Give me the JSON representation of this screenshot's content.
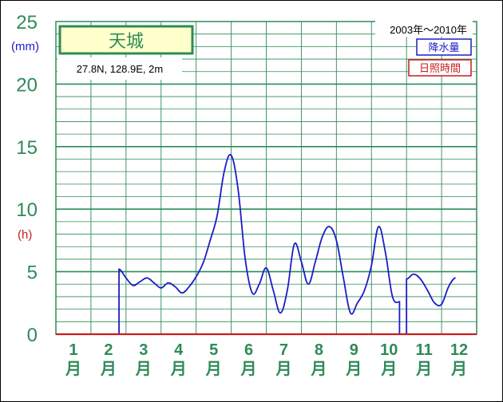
{
  "chart_data": {
    "type": "line",
    "station_name": "天城",
    "location": "27.8N,  128.9E,  2m",
    "period": "2003年〜2010年",
    "legend": [
      {
        "name": "降水量",
        "color": "#1c1cc8"
      },
      {
        "name": "日照時間",
        "color": "#c81c1c"
      }
    ],
    "y_unit_left": "(mm)",
    "y_unit_right": "(h)",
    "y_ticks": [
      "0",
      "5",
      "10",
      "15",
      "20",
      "25"
    ],
    "ylim": [
      0,
      25
    ],
    "xlim": [
      0.5,
      12.5
    ],
    "x_ticks": [
      {
        "num": "1",
        "unit": "月"
      },
      {
        "num": "2",
        "unit": "月"
      },
      {
        "num": "3",
        "unit": "月"
      },
      {
        "num": "4",
        "unit": "月"
      },
      {
        "num": "5",
        "unit": "月"
      },
      {
        "num": "6",
        "unit": "月"
      },
      {
        "num": "7",
        "unit": "月"
      },
      {
        "num": "8",
        "unit": "月"
      },
      {
        "num": "9",
        "unit": "月"
      },
      {
        "num": "10",
        "unit": "月"
      },
      {
        "num": "11",
        "unit": "月"
      },
      {
        "num": "12",
        "unit": "月"
      }
    ],
    "grid": true,
    "series": [
      {
        "name": "降水量",
        "color": "#1c1cc8",
        "segments": [
          [
            [
              2.3,
              0
            ],
            [
              2.3,
              5.2
            ],
            [
              2.5,
              4.5
            ],
            [
              2.7,
              3.9
            ],
            [
              2.9,
              4.2
            ],
            [
              3.1,
              4.5
            ],
            [
              3.3,
              4.1
            ],
            [
              3.5,
              3.7
            ],
            [
              3.7,
              4.1
            ],
            [
              3.9,
              3.8
            ],
            [
              4.1,
              3.3
            ],
            [
              4.3,
              3.8
            ],
            [
              4.5,
              4.6
            ],
            [
              4.7,
              5.7
            ],
            [
              4.9,
              7.5
            ],
            [
              5.1,
              9.5
            ],
            [
              5.3,
              13.0
            ],
            [
              5.5,
              14.3
            ],
            [
              5.7,
              11.5
            ],
            [
              5.9,
              6.0
            ],
            [
              6.1,
              3.3
            ],
            [
              6.3,
              4.0
            ],
            [
              6.5,
              5.3
            ],
            [
              6.7,
              3.5
            ],
            [
              6.9,
              1.7
            ],
            [
              7.1,
              3.5
            ],
            [
              7.3,
              7.2
            ],
            [
              7.5,
              5.8
            ],
            [
              7.7,
              4.0
            ],
            [
              7.9,
              5.8
            ],
            [
              8.1,
              7.8
            ],
            [
              8.3,
              8.6
            ],
            [
              8.5,
              7.5
            ],
            [
              8.7,
              4.5
            ],
            [
              8.9,
              1.7
            ],
            [
              9.1,
              2.5
            ],
            [
              9.3,
              3.5
            ],
            [
              9.5,
              5.5
            ],
            [
              9.7,
              8.6
            ],
            [
              9.9,
              6.5
            ],
            [
              10.1,
              3.0
            ],
            [
              10.3,
              2.6
            ],
            [
              10.3,
              0
            ]
          ],
          [
            [
              10.5,
              0
            ],
            [
              10.5,
              4.4
            ],
            [
              10.7,
              4.8
            ],
            [
              10.9,
              4.4
            ],
            [
              11.1,
              3.5
            ],
            [
              11.3,
              2.5
            ],
            [
              11.5,
              2.4
            ],
            [
              11.7,
              3.8
            ],
            [
              11.9,
              4.5
            ]
          ]
        ]
      },
      {
        "name": "日照時間",
        "color": "#c81c1c",
        "segments": [
          [
            [
              0.5,
              0
            ],
            [
              12.5,
              0
            ]
          ]
        ]
      }
    ]
  }
}
